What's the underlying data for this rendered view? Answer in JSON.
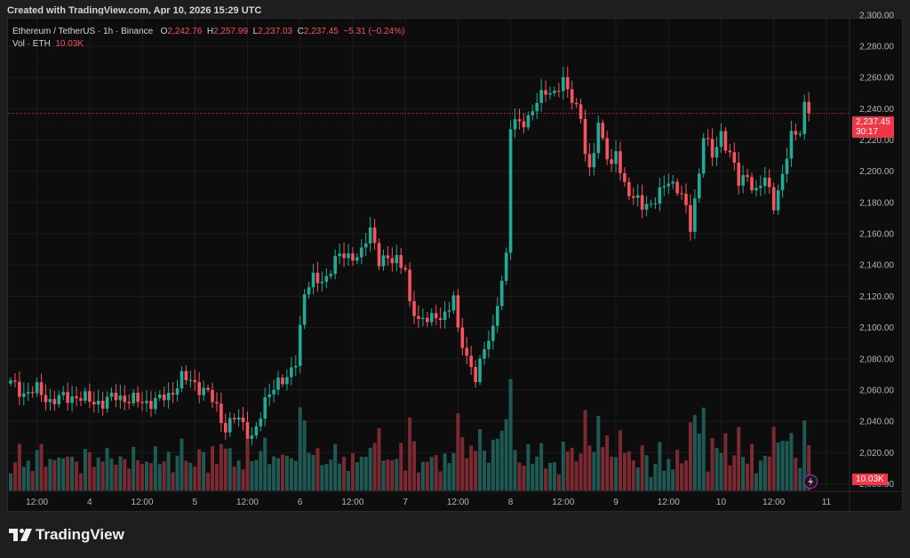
{
  "header": {
    "text": "Created with TradingView.com, Apr 10, 2026 15:29 UTC"
  },
  "legend": {
    "symbol": "Ethereum / TetherUS · 1h · Binance",
    "o_key": "O",
    "o": "2,242.76",
    "h_key": "H",
    "h": "2,257.99",
    "l_key": "L",
    "l": "2,237.03",
    "c_key": "C",
    "c": "2,237.45",
    "change": "−5.31 (−0.24%)",
    "vol_label": "Vol · ETH",
    "vol_value": "10.03K"
  },
  "last_price": {
    "price": "2,237.45",
    "countdown": "30:17"
  },
  "vol_badge": "10.03K",
  "footer": {
    "logo_text": "TradingView"
  },
  "colors": {
    "up": "#22ab94",
    "down": "#f7525f",
    "vol_up": "#1e5a53",
    "vol_down": "#7a2a30",
    "bg": "#0d0d0d",
    "grid": "#1c1c1c"
  },
  "chart_data": {
    "type": "candlestick",
    "ylim": [
      1998,
      2305
    ],
    "y_ticks": [
      2000,
      2020,
      2040,
      2060,
      2080,
      2100,
      2120,
      2140,
      2160,
      2180,
      2200,
      2220,
      2240,
      2260,
      2280,
      2300
    ],
    "y_tick_labels": [
      "2,000.00",
      "2,020.00",
      "2,040.00",
      "2,060.00",
      "2,080.00",
      "2,100.00",
      "2,120.00",
      "2,140.00",
      "2,160.00",
      "2,180.00",
      "2,200.00",
      "2,220.00",
      "2,240.00",
      "2,260.00",
      "2,280.00",
      "2,300.00"
    ],
    "x_ticks": [
      {
        "bar": 6,
        "label": "12:00"
      },
      {
        "bar": 18,
        "label": "4"
      },
      {
        "bar": 30,
        "label": "12:00"
      },
      {
        "bar": 42,
        "label": "5"
      },
      {
        "bar": 54,
        "label": "12:00"
      },
      {
        "bar": 66,
        "label": "6"
      },
      {
        "bar": 78,
        "label": "12:00"
      },
      {
        "bar": 90,
        "label": "7"
      },
      {
        "bar": 102,
        "label": "12:00"
      },
      {
        "bar": 114,
        "label": "8"
      },
      {
        "bar": 126,
        "label": "12:00"
      },
      {
        "bar": 138,
        "label": "9"
      },
      {
        "bar": 150,
        "label": "12:00"
      },
      {
        "bar": 162,
        "label": "10"
      },
      {
        "bar": 174,
        "label": "12:00"
      },
      {
        "bar": 186,
        "label": "11"
      }
    ],
    "keypoints": [
      [
        0,
        2064
      ],
      [
        3,
        2058
      ],
      [
        6,
        2060
      ],
      [
        9,
        2053
      ],
      [
        12,
        2055
      ],
      [
        15,
        2056
      ],
      [
        18,
        2053
      ],
      [
        21,
        2052
      ],
      [
        24,
        2056
      ],
      [
        27,
        2054
      ],
      [
        30,
        2052
      ],
      [
        33,
        2053
      ],
      [
        36,
        2056
      ],
      [
        39,
        2068
      ],
      [
        42,
        2064
      ],
      [
        45,
        2058
      ],
      [
        47,
        2048
      ],
      [
        49,
        2036
      ],
      [
        51,
        2042
      ],
      [
        53,
        2038
      ],
      [
        55,
        2030
      ],
      [
        57,
        2042
      ],
      [
        59,
        2060
      ],
      [
        61,
        2066
      ],
      [
        63,
        2065
      ],
      [
        65,
        2080
      ],
      [
        67,
        2122
      ],
      [
        69,
        2130
      ],
      [
        72,
        2132
      ],
      [
        74,
        2142
      ],
      [
        76,
        2148
      ],
      [
        78,
        2145
      ],
      [
        80,
        2146
      ],
      [
        82,
        2165
      ],
      [
        84,
        2143
      ],
      [
        86,
        2142
      ],
      [
        88,
        2145
      ],
      [
        90,
        2138
      ],
      [
        91,
        2112
      ],
      [
        93,
        2105
      ],
      [
        95,
        2108
      ],
      [
        97,
        2104
      ],
      [
        99,
        2108
      ],
      [
        101,
        2122
      ],
      [
        102,
        2096
      ],
      [
        104,
        2080
      ],
      [
        106,
        2070
      ],
      [
        108,
        2085
      ],
      [
        110,
        2098
      ],
      [
        111,
        2118
      ],
      [
        113,
        2145
      ],
      [
        114,
        2228
      ],
      [
        116,
        2232
      ],
      [
        118,
        2234
      ],
      [
        120,
        2243
      ],
      [
        122,
        2253
      ],
      [
        124,
        2250
      ],
      [
        126,
        2256
      ],
      [
        128,
        2248
      ],
      [
        130,
        2235
      ],
      [
        131,
        2210
      ],
      [
        132,
        2198
      ],
      [
        134,
        2232
      ],
      [
        136,
        2210
      ],
      [
        137,
        2200
      ],
      [
        138,
        2212
      ],
      [
        140,
        2192
      ],
      [
        142,
        2182
      ],
      [
        144,
        2178
      ],
      [
        146,
        2180
      ],
      [
        148,
        2185
      ],
      [
        150,
        2194
      ],
      [
        152,
        2190
      ],
      [
        153,
        2185
      ],
      [
        155,
        2163
      ],
      [
        157,
        2200
      ],
      [
        158,
        2225
      ],
      [
        160,
        2208
      ],
      [
        162,
        2224
      ],
      [
        164,
        2212
      ],
      [
        166,
        2192
      ],
      [
        168,
        2198
      ],
      [
        170,
        2186
      ],
      [
        172,
        2195
      ],
      [
        174,
        2180
      ],
      [
        176,
        2196
      ],
      [
        178,
        2222
      ],
      [
        180,
        2228
      ],
      [
        181,
        2242
      ],
      [
        182,
        2237
      ]
    ],
    "n_bars": 183,
    "volume_range": [
      0,
      73
    ]
  }
}
